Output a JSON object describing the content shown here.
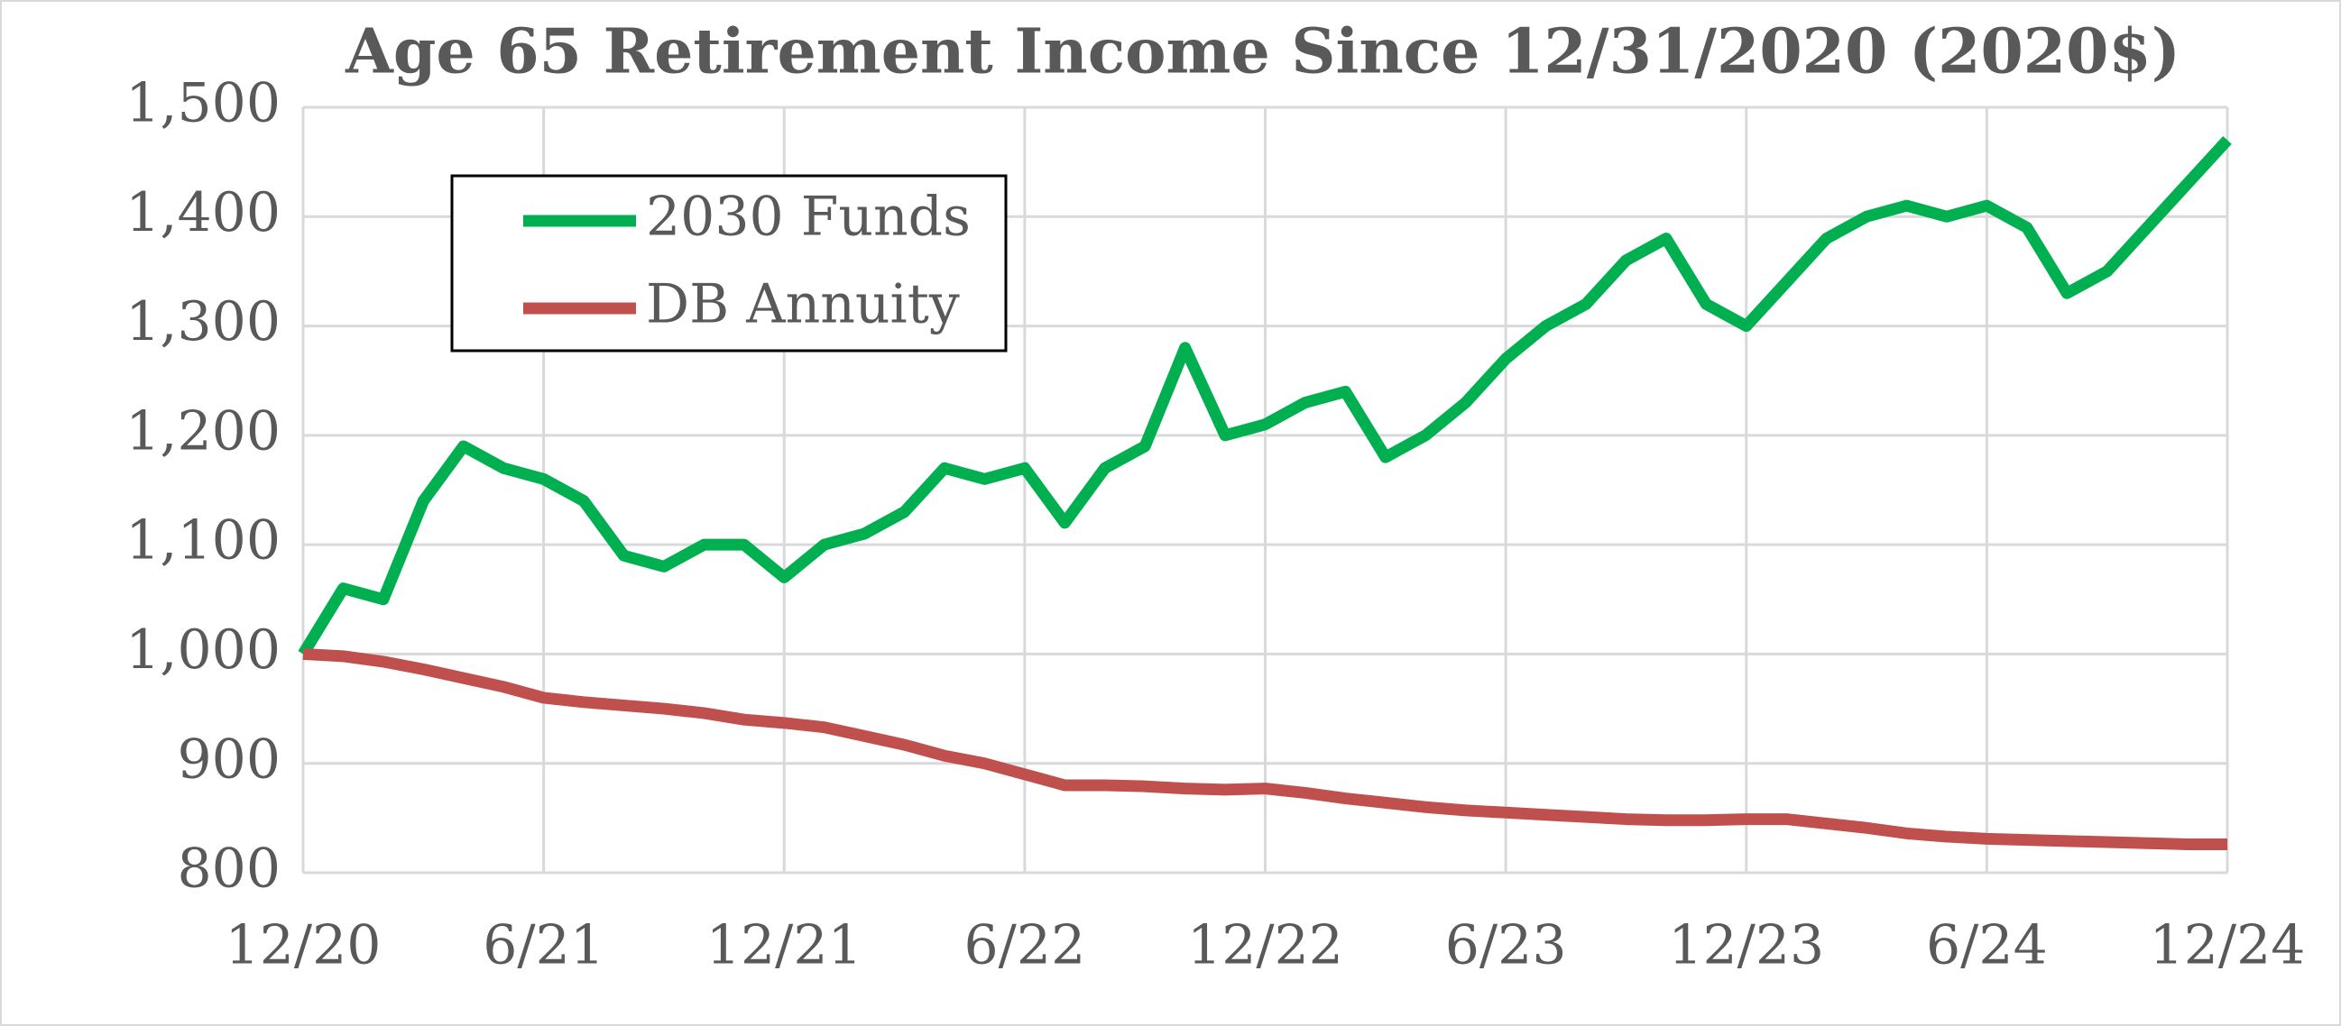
{
  "chart_data": {
    "type": "line",
    "title": "Age 65 Retirement Income Since 12/31/2020 (2020$)",
    "categories": [
      "12/20",
      null,
      null,
      null,
      null,
      null,
      "6/21",
      null,
      null,
      null,
      null,
      null,
      "12/21",
      null,
      null,
      null,
      null,
      null,
      "6/22",
      null,
      null,
      null,
      null,
      null,
      "12/22",
      null,
      null,
      null,
      null,
      null,
      "6/23",
      null,
      null,
      null,
      null,
      null,
      "12/23",
      null,
      null,
      null,
      null,
      null,
      "6/24",
      null,
      null,
      null,
      null,
      null,
      "12/24"
    ],
    "series": [
      {
        "name": "2030 Funds",
        "color": "#00b050",
        "values": [
          1000,
          1060,
          1050,
          1140,
          1190,
          1170,
          1160,
          1140,
          1090,
          1080,
          1100,
          1100,
          1070,
          1100,
          1110,
          1130,
          1170,
          1160,
          1170,
          1120,
          1170,
          1190,
          1280,
          1200,
          1210,
          1230,
          1240,
          1180,
          1200,
          1230,
          1270,
          1300,
          1320,
          1360,
          1380,
          1320,
          1300,
          1340,
          1380,
          1400,
          1410,
          1400,
          1410,
          1390,
          1330,
          1350,
          1390,
          1430,
          1470
        ]
      },
      {
        "name": "DB Annuity",
        "color": "#c0504d",
        "values": [
          1000,
          998,
          993,
          986,
          978,
          970,
          960,
          956,
          953,
          950,
          946,
          940,
          937,
          933,
          925,
          917,
          907,
          900,
          890,
          880,
          880,
          879,
          877,
          876,
          877,
          873,
          868,
          864,
          860,
          857,
          855,
          853,
          851,
          849,
          848,
          848,
          849,
          849,
          845,
          841,
          836,
          833,
          831,
          830,
          829,
          828,
          827,
          826,
          826
        ]
      }
    ],
    "ylim": [
      800,
      1500
    ],
    "yticks": [
      800,
      900,
      {
        "value": 1000,
        "label": "1,000"
      },
      {
        "value": 1100,
        "label": "1,100"
      },
      {
        "value": 1200,
        "label": "1,200"
      },
      {
        "value": 1300,
        "label": "1,300"
      },
      {
        "value": 1400,
        "label": "1,400"
      },
      {
        "value": 1500,
        "label": "1,500"
      }
    ],
    "grid": true,
    "legend": "upper-left"
  }
}
